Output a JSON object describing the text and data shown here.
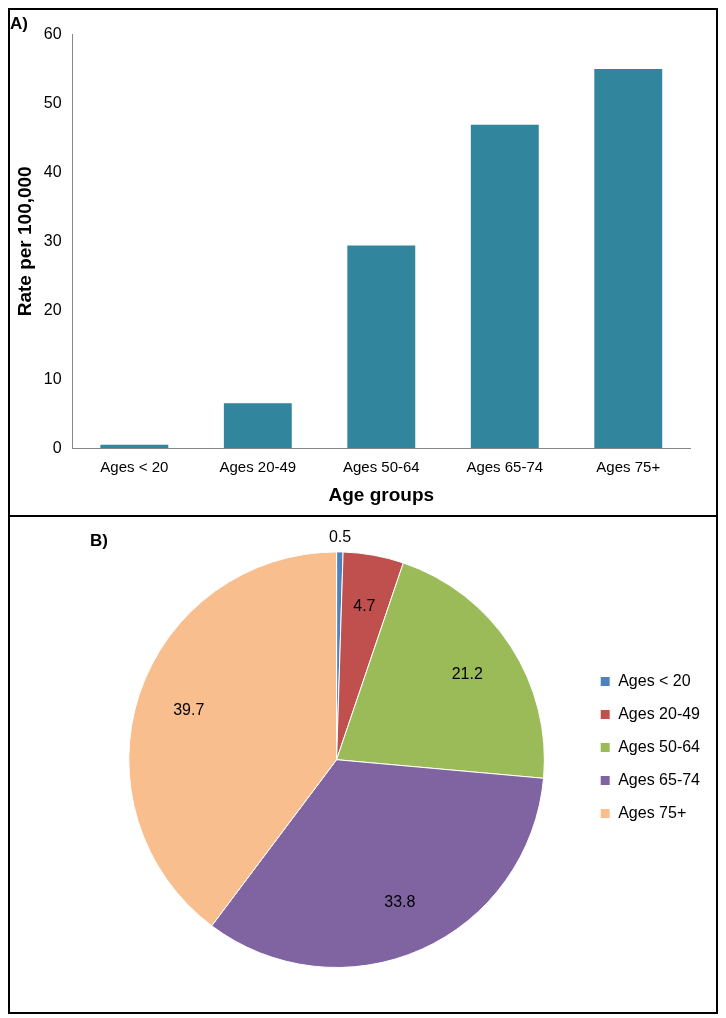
{
  "chart_data": [
    {
      "type": "bar",
      "title": "A)",
      "xlabel": "Age groups",
      "ylabel": "Rate per 100,000",
      "categories": [
        "Ages < 20",
        "Ages 20-49",
        "Ages 50-64",
        "Ages 65-74",
        "Ages 75+"
      ],
      "values": [
        0.5,
        6.5,
        29.4,
        46.9,
        55.0
      ],
      "color": "#31859c",
      "ylim": [
        0,
        60
      ],
      "yticks": [
        0,
        10,
        20,
        30,
        40,
        50,
        60
      ],
      "grid": false
    },
    {
      "type": "pie",
      "title": "B)",
      "categories": [
        "Ages < 20",
        "Ages 20-49",
        "Ages 50-64",
        "Ages 65-74",
        "Ages 75+"
      ],
      "values": [
        0.5,
        4.7,
        21.2,
        33.8,
        39.7
      ],
      "colors": [
        "#4f81bd",
        "#c0504d",
        "#9bbb59",
        "#8064a2",
        "#f9be8e"
      ],
      "data_labels": true,
      "legend": "right"
    }
  ]
}
